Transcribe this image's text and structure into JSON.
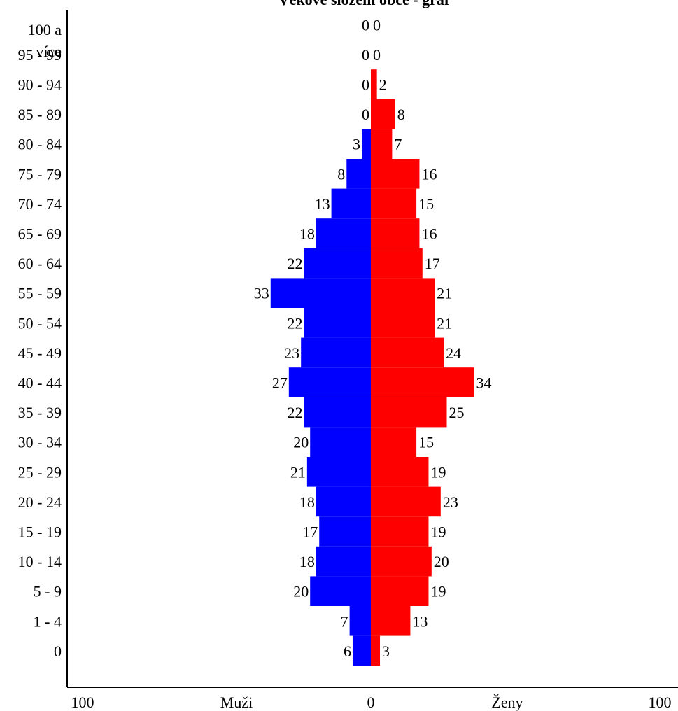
{
  "chart_data": {
    "type": "bar",
    "orientation": "horizontal",
    "title": "Věkové složení obce - graf",
    "categories": [
      "100 a více",
      "95 - 99",
      "90 - 94",
      "85 - 89",
      "80 - 84",
      "75 - 79",
      "70 - 74",
      "65 - 69",
      "60 - 64",
      "55 - 59",
      "50 - 54",
      "45 - 49",
      "40 - 44",
      "35 - 39",
      "30 - 34",
      "25 - 29",
      "20 - 24",
      "15 - 19",
      "10 - 14",
      "5 - 9",
      "1 - 4",
      "0"
    ],
    "series": [
      {
        "name": "Muži",
        "color": "#0000ff",
        "values": [
          0,
          0,
          0,
          0,
          3,
          8,
          13,
          18,
          22,
          33,
          22,
          23,
          27,
          22,
          20,
          21,
          18,
          17,
          18,
          20,
          7,
          6
        ]
      },
      {
        "name": "Ženy",
        "color": "#ff0000",
        "values": [
          0,
          0,
          2,
          8,
          7,
          16,
          15,
          16,
          17,
          21,
          21,
          24,
          34,
          25,
          15,
          19,
          23,
          19,
          20,
          19,
          13,
          3
        ]
      }
    ],
    "xlim": [
      -100,
      100
    ],
    "x_tick_labels": [
      "100",
      "0",
      "100"
    ],
    "x_axis_labels": [
      "Muži",
      "Ženy"
    ],
    "grid": false,
    "legend": "none"
  }
}
